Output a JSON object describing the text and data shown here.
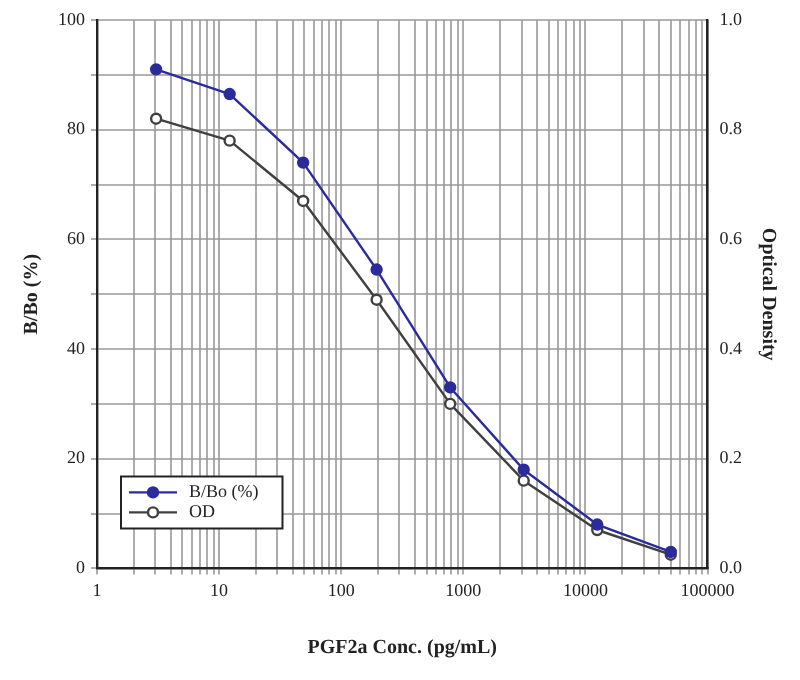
{
  "chart_data": {
    "type": "line",
    "xlabel": "PGF2a Conc. (pg/mL)",
    "ylabel": "B/Bo (%)",
    "y2label": "Optical Density",
    "log": "x",
    "grid": true,
    "legend": "bottom left",
    "marker": "circle",
    "line_style": "solid",
    "x": [
      3.05,
      12.2,
      48.8,
      195,
      781,
      3125,
      12500,
      50000
    ],
    "series": [
      {
        "name": "B/Bo (%)",
        "color": "#2b2b9c",
        "values": [
          91,
          86.5,
          74,
          54.5,
          33,
          18,
          8,
          3
        ]
      },
      {
        "name": "OD",
        "color": "#404040",
        "axis": "y2",
        "values": [
          0.82,
          0.78,
          0.67,
          0.49,
          0.3,
          0.16,
          0.07,
          0.025
        ]
      }
    ],
    "xlim": [
      1,
      100000
    ],
    "xticks": [
      1,
      {
        "value": 2,
        "label": null
      },
      {
        "value": 3,
        "label": null
      },
      {
        "value": 4,
        "label": null
      },
      {
        "value": 5,
        "label": null
      },
      {
        "value": 6,
        "label": null
      },
      {
        "value": 7,
        "label": null
      },
      {
        "value": 8,
        "label": null
      },
      {
        "value": 9,
        "label": null
      },
      10,
      {
        "value": 20,
        "label": null
      },
      {
        "value": 30,
        "label": null
      },
      {
        "value": 40,
        "label": null
      },
      {
        "value": 50,
        "label": null
      },
      {
        "value": 60,
        "label": null
      },
      {
        "value": 70,
        "label": null
      },
      {
        "value": 80,
        "label": null
      },
      {
        "value": 90,
        "label": null
      },
      100,
      {
        "value": 200,
        "label": null
      },
      {
        "value": 300,
        "label": null
      },
      {
        "value": 400,
        "label": null
      },
      {
        "value": 500,
        "label": null
      },
      {
        "value": 600,
        "label": null
      },
      {
        "value": 700,
        "label": null
      },
      {
        "value": 800,
        "label": null
      },
      {
        "value": 900,
        "label": null
      },
      1000,
      {
        "value": 2000,
        "label": null
      },
      {
        "value": 3000,
        "label": null
      },
      {
        "value": 4000,
        "label": null
      },
      {
        "value": 5000,
        "label": null
      },
      {
        "value": 6000,
        "label": null
      },
      {
        "value": 7000,
        "label": null
      },
      {
        "value": 8000,
        "label": null
      },
      {
        "value": 9000,
        "label": null
      },
      10000,
      {
        "value": 20000,
        "label": null
      },
      {
        "value": 30000,
        "label": null
      },
      {
        "value": 40000,
        "label": null
      },
      {
        "value": 50000,
        "label": null
      },
      {
        "value": 60000,
        "label": null
      },
      {
        "value": 70000,
        "label": null
      },
      {
        "value": 80000,
        "label": null
      },
      {
        "value": 90000,
        "label": null
      },
      100000
    ],
    "ylim": [
      0,
      100
    ],
    "yticks": [
      0,
      {
        "value": 10,
        "label": null
      },
      20,
      {
        "value": 30,
        "label": null
      },
      40,
      {
        "value": 50,
        "label": null
      },
      60,
      {
        "value": 70,
        "label": null
      },
      80,
      {
        "value": 90,
        "label": null
      },
      100
    ],
    "y2lim": [
      0,
      1
    ],
    "y2ticks": [
      {
        "value": 0,
        "label": "0.0"
      },
      0.2,
      0.4,
      0.6,
      0.8,
      {
        "value": 1,
        "label": "1.0"
      }
    ]
  }
}
